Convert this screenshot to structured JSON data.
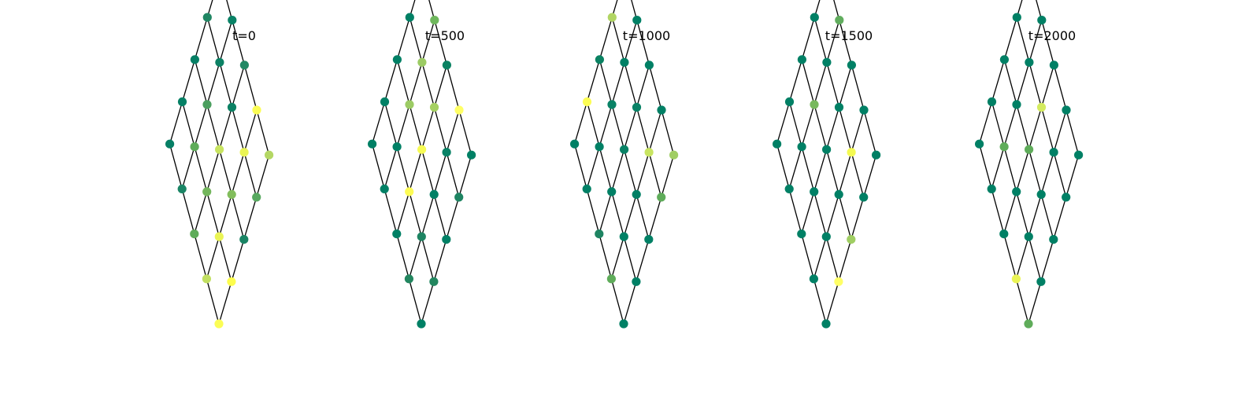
{
  "figure": {
    "panels": [
      {
        "title": "t=0",
        "node_colors": [
          [
            "#fbfd55",
            "#c1df61",
            "#5fac5a",
            "#1a8565",
            "#067f65"
          ],
          [
            "#fdfd4d",
            "#eaf455",
            "#73b65c",
            "#5fac5a",
            "#058065"
          ],
          [
            "#198464",
            "#82bd5c",
            "#c8e461",
            "#4b9f5f",
            "#067f65"
          ],
          [
            "#58a960",
            "#eaf455",
            "#0c8164",
            "#0c8164",
            "#208663"
          ],
          [
            "#b4d764",
            "#fbfd55",
            "#218864",
            "#098266",
            "#b4d764"
          ]
        ]
      },
      {
        "title": "t=500",
        "node_colors": [
          [
            "#008065",
            "#22865f",
            "#008065",
            "#008065",
            "#008065"
          ],
          [
            "#22865f",
            "#1e8462",
            "#fdfc55",
            "#008065",
            "#008065"
          ],
          [
            "#008065",
            "#008065",
            "#f6fb54",
            "#9ccb64",
            "#008065"
          ],
          [
            "#1e8462",
            "#098266",
            "#a5d062",
            "#9ccb64",
            "#008065"
          ],
          [
            "#008065",
            "#ffff66",
            "#0a8262",
            "#6fb75d",
            "#008065"
          ]
        ]
      },
      {
        "title": "t=1000",
        "node_colors": [
          [
            "#008065",
            "#5fac5a",
            "#1e8462",
            "#008065",
            "#008065"
          ],
          [
            "#008065",
            "#008065",
            "#008065",
            "#008065",
            "#fcfd55"
          ],
          [
            "#008065",
            "#008065",
            "#098266",
            "#098266",
            "#0a8262"
          ],
          [
            "#5fac5a",
            "#c8e461",
            "#098266",
            "#008065",
            "#b1d563"
          ],
          [
            "#a0ce63",
            "#008065",
            "#008065",
            "#008065",
            "#008065"
          ]
        ]
      },
      {
        "title": "t=1500",
        "node_colors": [
          [
            "#008065",
            "#008065",
            "#008065",
            "#008065",
            "#008065"
          ],
          [
            "#ffff66",
            "#008065",
            "#008065",
            "#008065",
            "#008065"
          ],
          [
            "#a0ce63",
            "#008065",
            "#008065",
            "#78b95e",
            "#008065"
          ],
          [
            "#008065",
            "#f4fa52",
            "#008065",
            "#008065",
            "#008065"
          ],
          [
            "#008065",
            "#008065",
            "#008065",
            "#61ad5e",
            "#a0ce63"
          ]
        ]
      },
      {
        "title": "t=2000",
        "node_colors": [
          [
            "#5fac5a",
            "#eaf455",
            "#008065",
            "#008065",
            "#008065"
          ],
          [
            "#008065",
            "#008065",
            "#008065",
            "#5fac5a",
            "#008065"
          ],
          [
            "#008065",
            "#008065",
            "#5fac5a",
            "#008065",
            "#008065"
          ],
          [
            "#008065",
            "#008065",
            "#d4eb5f",
            "#008065",
            "#008065"
          ],
          [
            "#008065",
            "#008065",
            "#008065",
            "#008065",
            "#ffff66"
          ]
        ]
      }
    ]
  }
}
